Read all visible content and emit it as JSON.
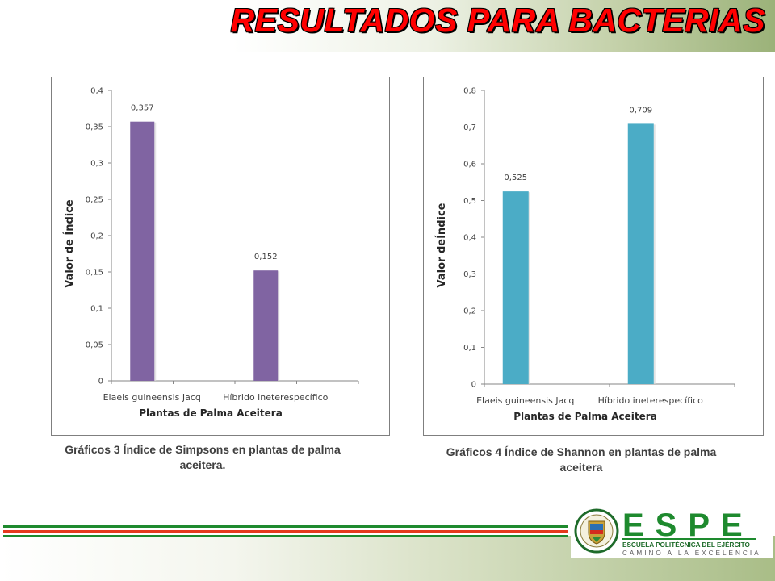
{
  "header": {
    "title": "RESULTADOS PARA BACTERIAS"
  },
  "chart_data": [
    {
      "type": "bar",
      "categories": [
        "Elaeis guineensis Jacq",
        "Híbrido ineterespecífico"
      ],
      "values": [
        0.357,
        0.152
      ],
      "data_labels": [
        "0,357",
        "0,152"
      ],
      "ylim": [
        0,
        0.4
      ],
      "yticks": [
        "0",
        "0,05",
        "0,1",
        "0,15",
        "0,2",
        "0,25",
        "0,3",
        "0,35",
        "0,4"
      ],
      "ylabel": "Valor de Índice",
      "xlabel": "Plantas de Palma Aceitera",
      "color": "#8064a2",
      "caption": "Gráficos 3 Índice de Simpsons en plantas de palma aceitera."
    },
    {
      "type": "bar",
      "categories": [
        "Elaeis guineensis Jacq",
        "Híbrido ineterespecífico"
      ],
      "values": [
        0.525,
        0.709
      ],
      "data_labels": [
        "0,525",
        "0,709"
      ],
      "ylim": [
        0,
        0.8
      ],
      "yticks": [
        "0",
        "0,1",
        "0,2",
        "0,3",
        "0,4",
        "0,5",
        "0,6",
        "0,7",
        "0,8"
      ],
      "ylabel": "Valor deÍndice",
      "xlabel": "Plantas de Palma Aceitera",
      "color": "#4bacc6",
      "caption": "Gráficos 4 Índice de Shannon en plantas de palma aceitera"
    }
  ],
  "footer": {
    "logo_letters": [
      "E",
      "S",
      "P",
      "E"
    ],
    "logo_line1": "ESCUELA POLITÉCNICA DEL EJÉRCITO",
    "logo_line2": "CAMINO A LA EXCELENCIA",
    "seal_text": "ESCUELA POLITÉCNICA DEL EJÉRCITO",
    "seal_country": "ECUADOR",
    "stripe_colors": [
      "#1e8a2e",
      "#ffffff",
      "#e53a1e",
      "#ffffff",
      "#1e8a2e"
    ]
  }
}
